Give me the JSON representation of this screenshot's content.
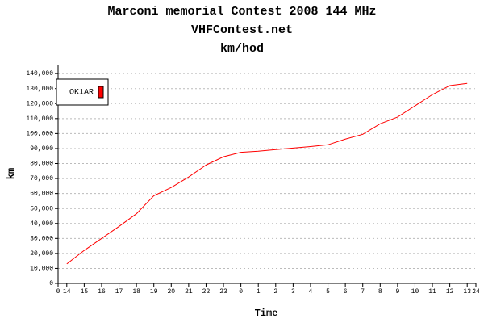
{
  "chart_data": {
    "type": "line",
    "title": "Marconi memorial Contest 2008 144 MHz",
    "subtitle": "VHFContest.net",
    "subtitle2": "km/hod",
    "xlabel": "Time",
    "ylabel": "km",
    "x": [
      0.5,
      1.5,
      2.5,
      3.5,
      4.5,
      5.5,
      6.5,
      7.5,
      8.5,
      9.5,
      10.5,
      11.5,
      12.5,
      13.5,
      14.5,
      15.5,
      16.5,
      17.5,
      18.5,
      19.5,
      20.5,
      21.5,
      22.5,
      23.5
    ],
    "series": [
      {
        "name": "OK1AR",
        "color": "#ff0000",
        "values": [
          13000,
          22000,
          30000,
          38000,
          46500,
          58500,
          64000,
          71000,
          79000,
          84500,
          87500,
          88200,
          89300,
          90300,
          91300,
          92500,
          96300,
          99500,
          106500,
          111000,
          118500,
          126000,
          132000,
          133500
        ]
      }
    ],
    "xlim": [
      0,
      24
    ],
    "xticks": [
      0,
      {
        "value": 0.5,
        "label": "14"
      },
      {
        "value": 1.5,
        "label": "15"
      },
      {
        "value": 2.5,
        "label": "16"
      },
      {
        "value": 3.5,
        "label": "17"
      },
      {
        "value": 4.5,
        "label": "18"
      },
      {
        "value": 5.5,
        "label": "19"
      },
      {
        "value": 6.5,
        "label": "20"
      },
      {
        "value": 7.5,
        "label": "21"
      },
      {
        "value": 8.5,
        "label": "22"
      },
      {
        "value": 9.5,
        "label": "23"
      },
      {
        "value": 10.5,
        "label": "0"
      },
      {
        "value": 11.5,
        "label": "1"
      },
      {
        "value": 12.5,
        "label": "2"
      },
      {
        "value": 13.5,
        "label": "3"
      },
      {
        "value": 14.5,
        "label": "4"
      },
      {
        "value": 15.5,
        "label": "5"
      },
      {
        "value": 16.5,
        "label": "6"
      },
      {
        "value": 17.5,
        "label": "7"
      },
      {
        "value": 18.5,
        "label": "8"
      },
      {
        "value": 19.5,
        "label": "9"
      },
      {
        "value": 20.5,
        "label": "10"
      },
      {
        "value": 21.5,
        "label": "11"
      },
      {
        "value": 22.5,
        "label": "12"
      },
      {
        "value": 23.5,
        "label": "13"
      },
      24
    ],
    "ylim": [
      0,
      146000
    ],
    "yticks": [
      0,
      {
        "value": 10000,
        "label": "10,000"
      },
      {
        "value": 20000,
        "label": "20,000"
      },
      {
        "value": 30000,
        "label": "30,000"
      },
      {
        "value": 40000,
        "label": "40,000"
      },
      {
        "value": 50000,
        "label": "50,000"
      },
      {
        "value": 60000,
        "label": "60,000"
      },
      {
        "value": 70000,
        "label": "70,000"
      },
      {
        "value": 80000,
        "label": "80,000"
      },
      {
        "value": 90000,
        "label": "90,000"
      },
      {
        "value": 100000,
        "label": "100,000"
      },
      {
        "value": 110000,
        "label": "110,000"
      },
      {
        "value": 120000,
        "label": "120,000"
      },
      {
        "value": 130000,
        "label": "130,000"
      },
      {
        "value": 140000,
        "label": "140,000"
      }
    ],
    "grid": true,
    "legend": "top-left"
  }
}
